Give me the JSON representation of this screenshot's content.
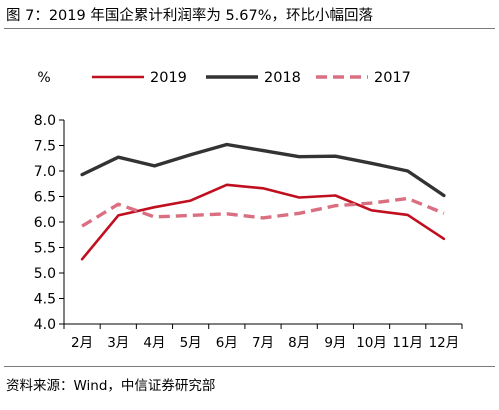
{
  "figure": {
    "title": "图 7：2019 年国企累计利润率为 5.67%，环比小幅回落",
    "source": "资料来源：Wind，中信证券研究部"
  },
  "chart_data": {
    "type": "line",
    "y_unit_label": "%",
    "ylim": [
      4.0,
      8.0
    ],
    "yticks": [
      "4.0",
      "4.5",
      "5.0",
      "5.5",
      "6.0",
      "6.5",
      "7.0",
      "7.5",
      "8.0"
    ],
    "categories": [
      "2月",
      "3月",
      "4月",
      "5月",
      "6月",
      "7月",
      "8月",
      "9月",
      "10月",
      "11月",
      "12月"
    ],
    "legend_position": "top",
    "grid": false,
    "series": [
      {
        "name": "2019",
        "color": "#C0101F",
        "style": "solid",
        "values": [
          5.27,
          6.13,
          6.29,
          6.42,
          6.73,
          6.66,
          6.48,
          6.52,
          6.23,
          6.14,
          5.67
        ]
      },
      {
        "name": "2018",
        "color": "#333333",
        "style": "solid",
        "values": [
          6.93,
          7.27,
          7.1,
          7.32,
          7.52,
          7.4,
          7.28,
          7.29,
          7.15,
          7.0,
          6.52
        ]
      },
      {
        "name": "2017",
        "color": "#DA6F82",
        "style": "dashed",
        "values": [
          5.92,
          6.35,
          6.1,
          6.13,
          6.16,
          6.08,
          6.17,
          6.32,
          6.37,
          6.46,
          6.17
        ]
      }
    ]
  }
}
